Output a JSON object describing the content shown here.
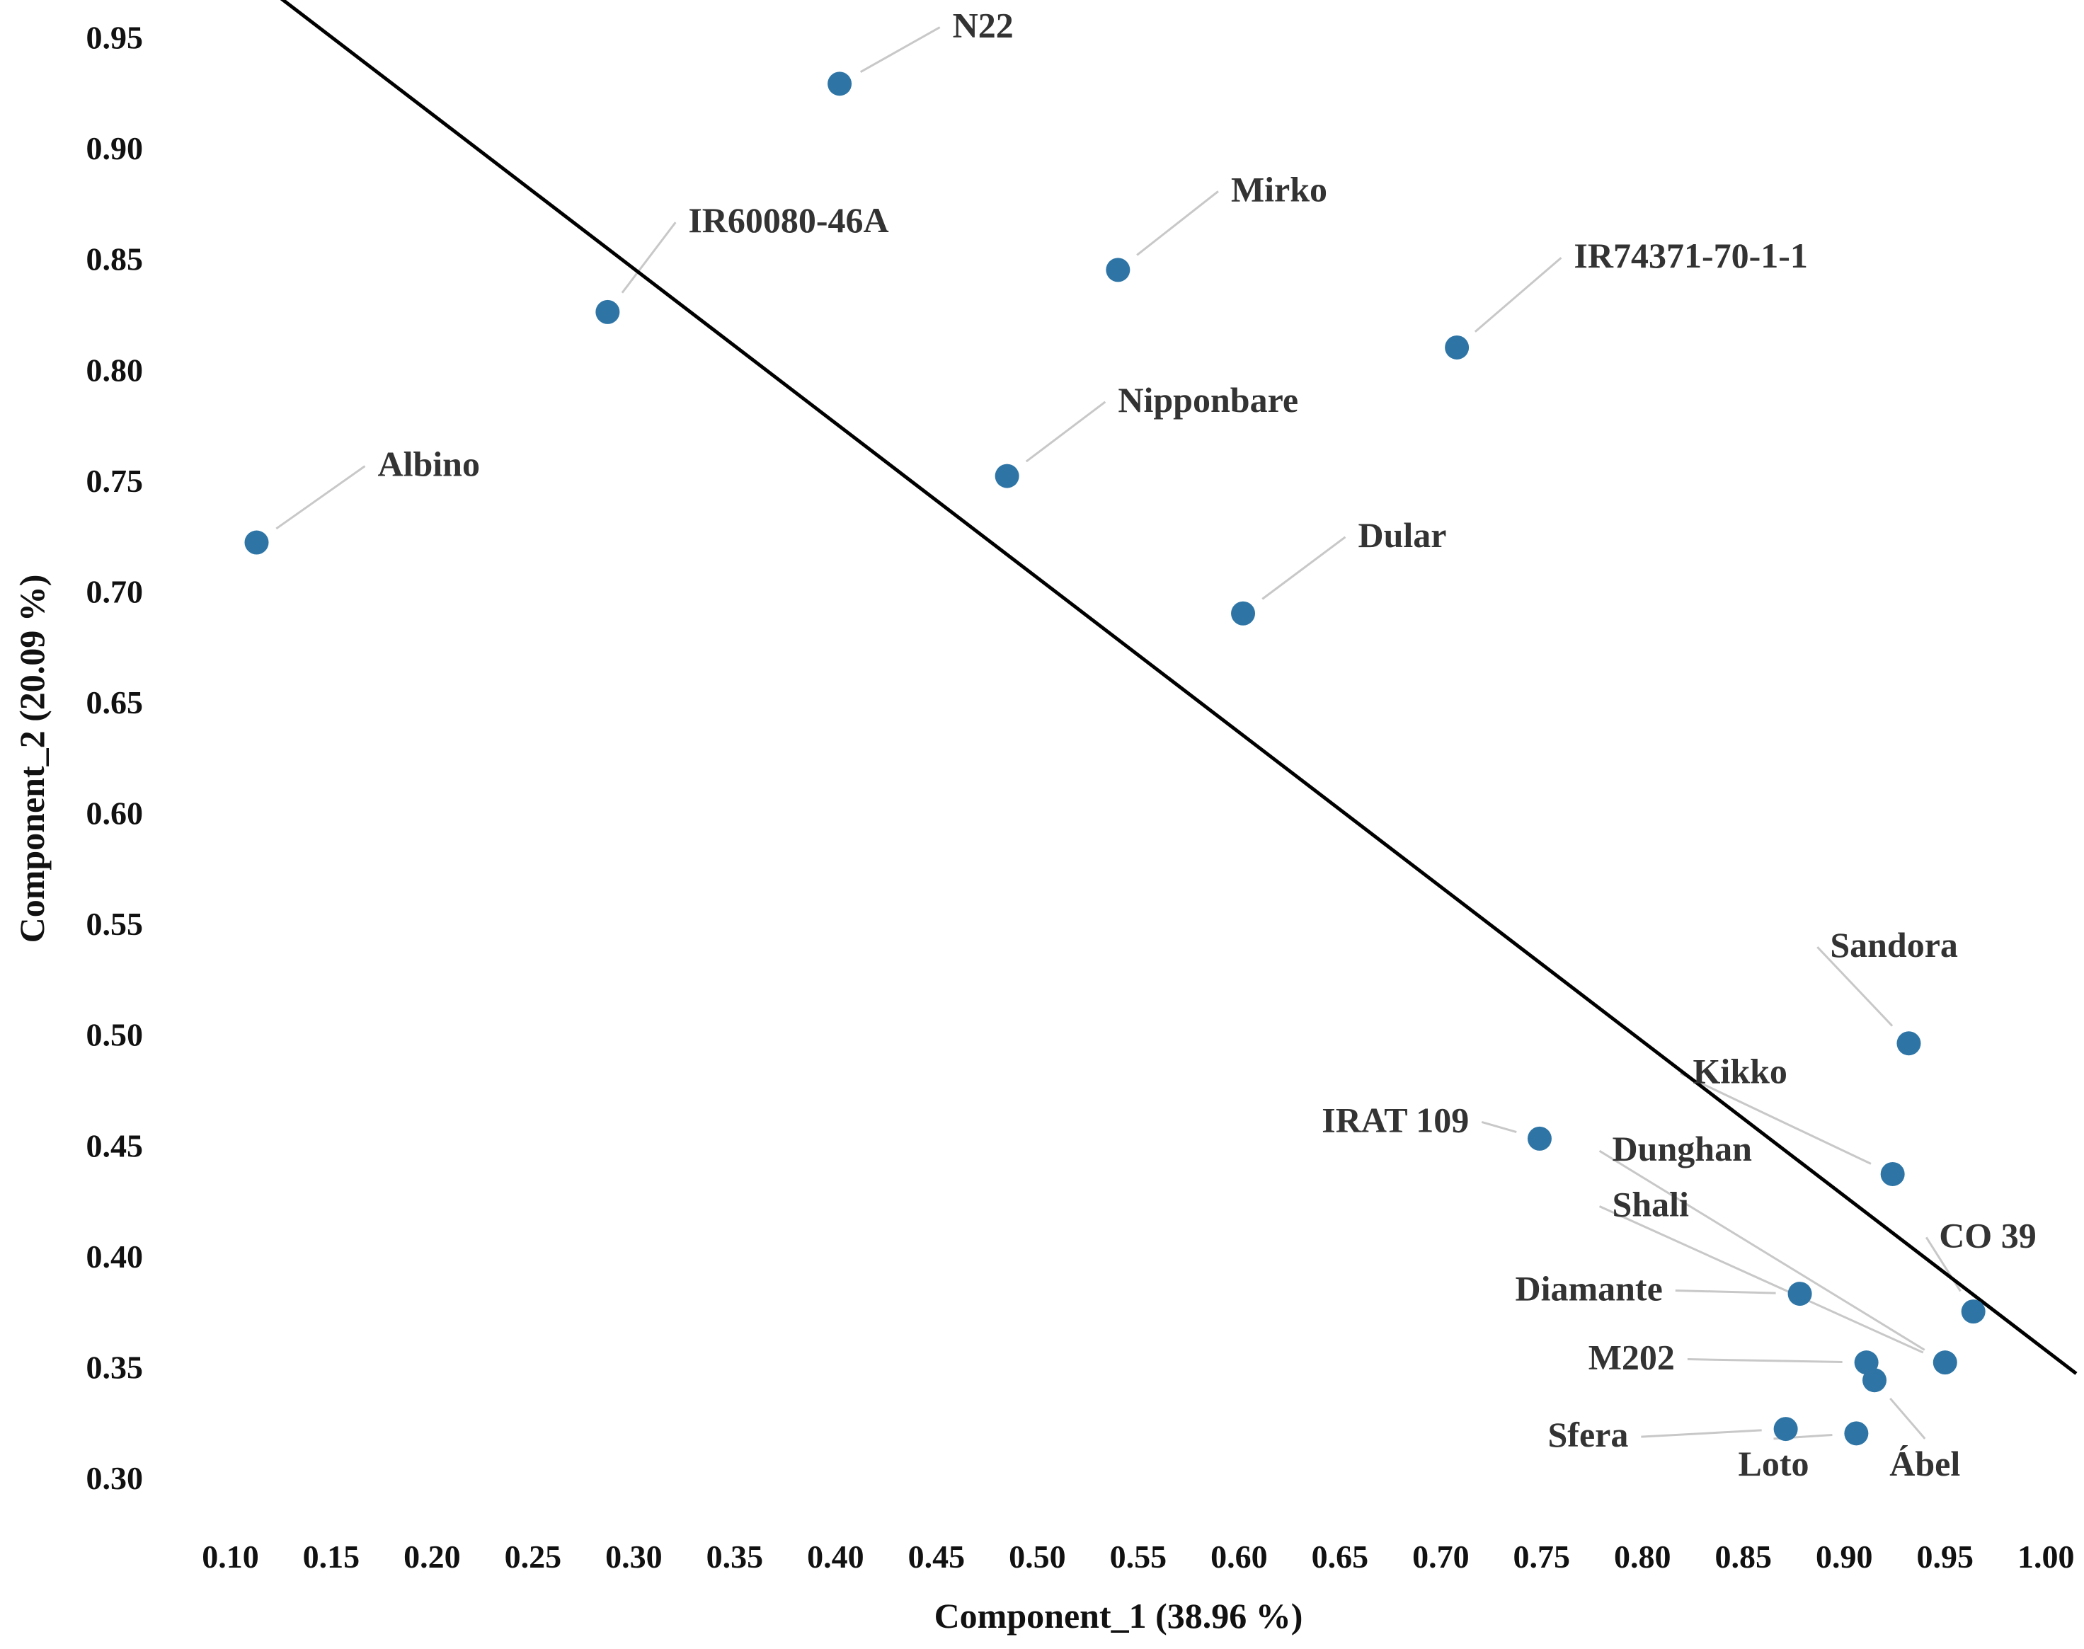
{
  "chart_data": {
    "type": "scatter",
    "title": "",
    "xlabel": "Component_1 (38.96 %)",
    "ylabel": "Component_2 (20.09 %)",
    "xlim": [
      0.083,
      1.015
    ],
    "ylim": [
      0.277,
      0.962
    ],
    "grid": false,
    "marker_color": "#2e75a6",
    "line_color": "#000000",
    "x_ticks": [
      "0.10",
      "0.15",
      "0.20",
      "0.25",
      "0.30",
      "0.35",
      "0.40",
      "0.45",
      "0.50",
      "0.55",
      "0.60",
      "0.65",
      "0.70",
      "0.75",
      "0.80",
      "0.85",
      "0.90",
      "0.95",
      "1.00"
    ],
    "y_ticks": [
      "0.30",
      "0.35",
      "0.40",
      "0.45",
      "0.50",
      "0.55",
      "0.60",
      "0.65",
      "0.70",
      "0.75",
      "0.80",
      "0.85",
      "0.90",
      "0.95"
    ],
    "reference_line": {
      "x": [
        0.1,
        1.015
      ],
      "y": [
        0.985,
        0.347
      ]
    },
    "points": [
      {
        "label": "N22",
        "x": 0.402,
        "y": 0.929,
        "label_x": 0.458,
        "label_y": 0.95,
        "label_anchor": "start"
      },
      {
        "label": "Mirko",
        "x": 0.54,
        "y": 0.845,
        "label_x": 0.596,
        "label_y": 0.876,
        "label_anchor": "start"
      },
      {
        "label": "IR60080-46A",
        "x": 0.287,
        "y": 0.826,
        "label_x": 0.327,
        "label_y": 0.862,
        "label_anchor": "start"
      },
      {
        "label": "IR74371-70-1-1",
        "x": 0.708,
        "y": 0.81,
        "label_x": 0.766,
        "label_y": 0.846,
        "label_anchor": "start"
      },
      {
        "label": "Nipponbare",
        "x": 0.485,
        "y": 0.752,
        "label_x": 0.54,
        "label_y": 0.781,
        "label_anchor": "start"
      },
      {
        "label": "Albino",
        "x": 0.113,
        "y": 0.722,
        "label_x": 0.173,
        "label_y": 0.752,
        "label_anchor": "start"
      },
      {
        "label": "Dular",
        "x": 0.602,
        "y": 0.69,
        "label_x": 0.659,
        "label_y": 0.72,
        "label_anchor": "start"
      },
      {
        "label": "Sandora",
        "x": 0.932,
        "y": 0.496,
        "label_x": 0.893,
        "label_y": 0.535,
        "label_anchor": "start"
      },
      {
        "label": "Kikko",
        "x": 0.924,
        "y": 0.437,
        "label_x": 0.825,
        "label_y": 0.478,
        "label_anchor": "start"
      },
      {
        "label": "IRAT 109",
        "x": 0.749,
        "y": 0.453,
        "label_x": 0.714,
        "label_y": 0.456,
        "label_anchor": "end"
      },
      {
        "label": "Dunghan",
        "x": 0.95,
        "y": 0.352,
        "label_x": 0.785,
        "label_y": 0.443,
        "label_anchor": "start"
      },
      {
        "label": "Shali",
        "x": 0.95,
        "y": 0.352,
        "label_x": 0.785,
        "label_y": 0.418,
        "label_anchor": "start"
      },
      {
        "label": "CO 39",
        "x": 0.964,
        "y": 0.375,
        "label_x": 0.947,
        "label_y": 0.404,
        "label_anchor": "start"
      },
      {
        "label": "Diamante",
        "x": 0.878,
        "y": 0.383,
        "label_x": 0.81,
        "label_y": 0.38,
        "label_anchor": "end"
      },
      {
        "label": "M202",
        "x": 0.911,
        "y": 0.352,
        "label_x": 0.816,
        "label_y": 0.349,
        "label_anchor": "end"
      },
      {
        "label": "Ábel",
        "x": 0.915,
        "y": 0.344,
        "label_x": 0.94,
        "label_y": 0.301,
        "label_anchor": "middle"
      },
      {
        "label": "Sfera",
        "x": 0.871,
        "y": 0.322,
        "label_x": 0.793,
        "label_y": 0.314,
        "label_anchor": "end"
      },
      {
        "label": "Loto",
        "x": 0.906,
        "y": 0.32,
        "label_x": 0.865,
        "label_y": 0.301,
        "label_anchor": "middle"
      }
    ]
  }
}
